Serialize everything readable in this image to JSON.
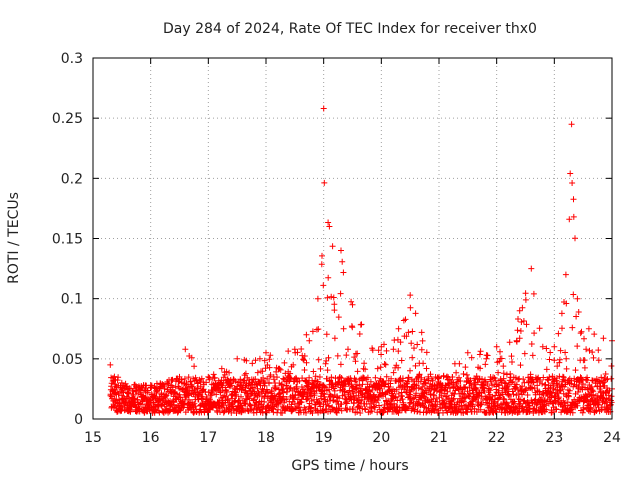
{
  "chart_data": {
    "type": "scatter",
    "title": "Day 284 of 2024, Rate Of TEC Index for receiver thx0",
    "xlabel": "GPS time / hours",
    "ylabel": "ROTI / TECUs",
    "xlim": [
      15,
      24
    ],
    "ylim": [
      0,
      0.3
    ],
    "x_ticks": [
      "15",
      "16",
      "17",
      "18",
      "19",
      "20",
      "21",
      "22",
      "23",
      "24"
    ],
    "y_ticks": [
      "0",
      "0.05",
      "0.1",
      "0.15",
      "0.2",
      "0.25",
      "0.3"
    ],
    "grid": true,
    "marker": "+",
    "series": [
      {
        "name": "ROTI",
        "color": "#ff0000",
        "envelope_hours": [
          15.3,
          15.5,
          16.0,
          16.5,
          16.6,
          17.0,
          17.5,
          18.0,
          18.5,
          18.7,
          18.9,
          19.0,
          19.1,
          19.3,
          19.5,
          20.0,
          20.3,
          20.5,
          20.7,
          21.0,
          21.5,
          22.0,
          22.4,
          22.6,
          22.8,
          23.0,
          23.2,
          23.3,
          23.4,
          23.6,
          24.0
        ],
        "envelope_roti": [
          0.045,
          0.03,
          0.028,
          0.035,
          0.058,
          0.035,
          0.05,
          0.055,
          0.058,
          0.07,
          0.1,
          0.258,
          0.16,
          0.14,
          0.095,
          0.06,
          0.075,
          0.103,
          0.072,
          0.035,
          0.055,
          0.06,
          0.09,
          0.125,
          0.06,
          0.06,
          0.12,
          0.245,
          0.1,
          0.075,
          0.065
        ],
        "typical_roti_range": [
          0.005,
          0.035
        ]
      }
    ]
  }
}
